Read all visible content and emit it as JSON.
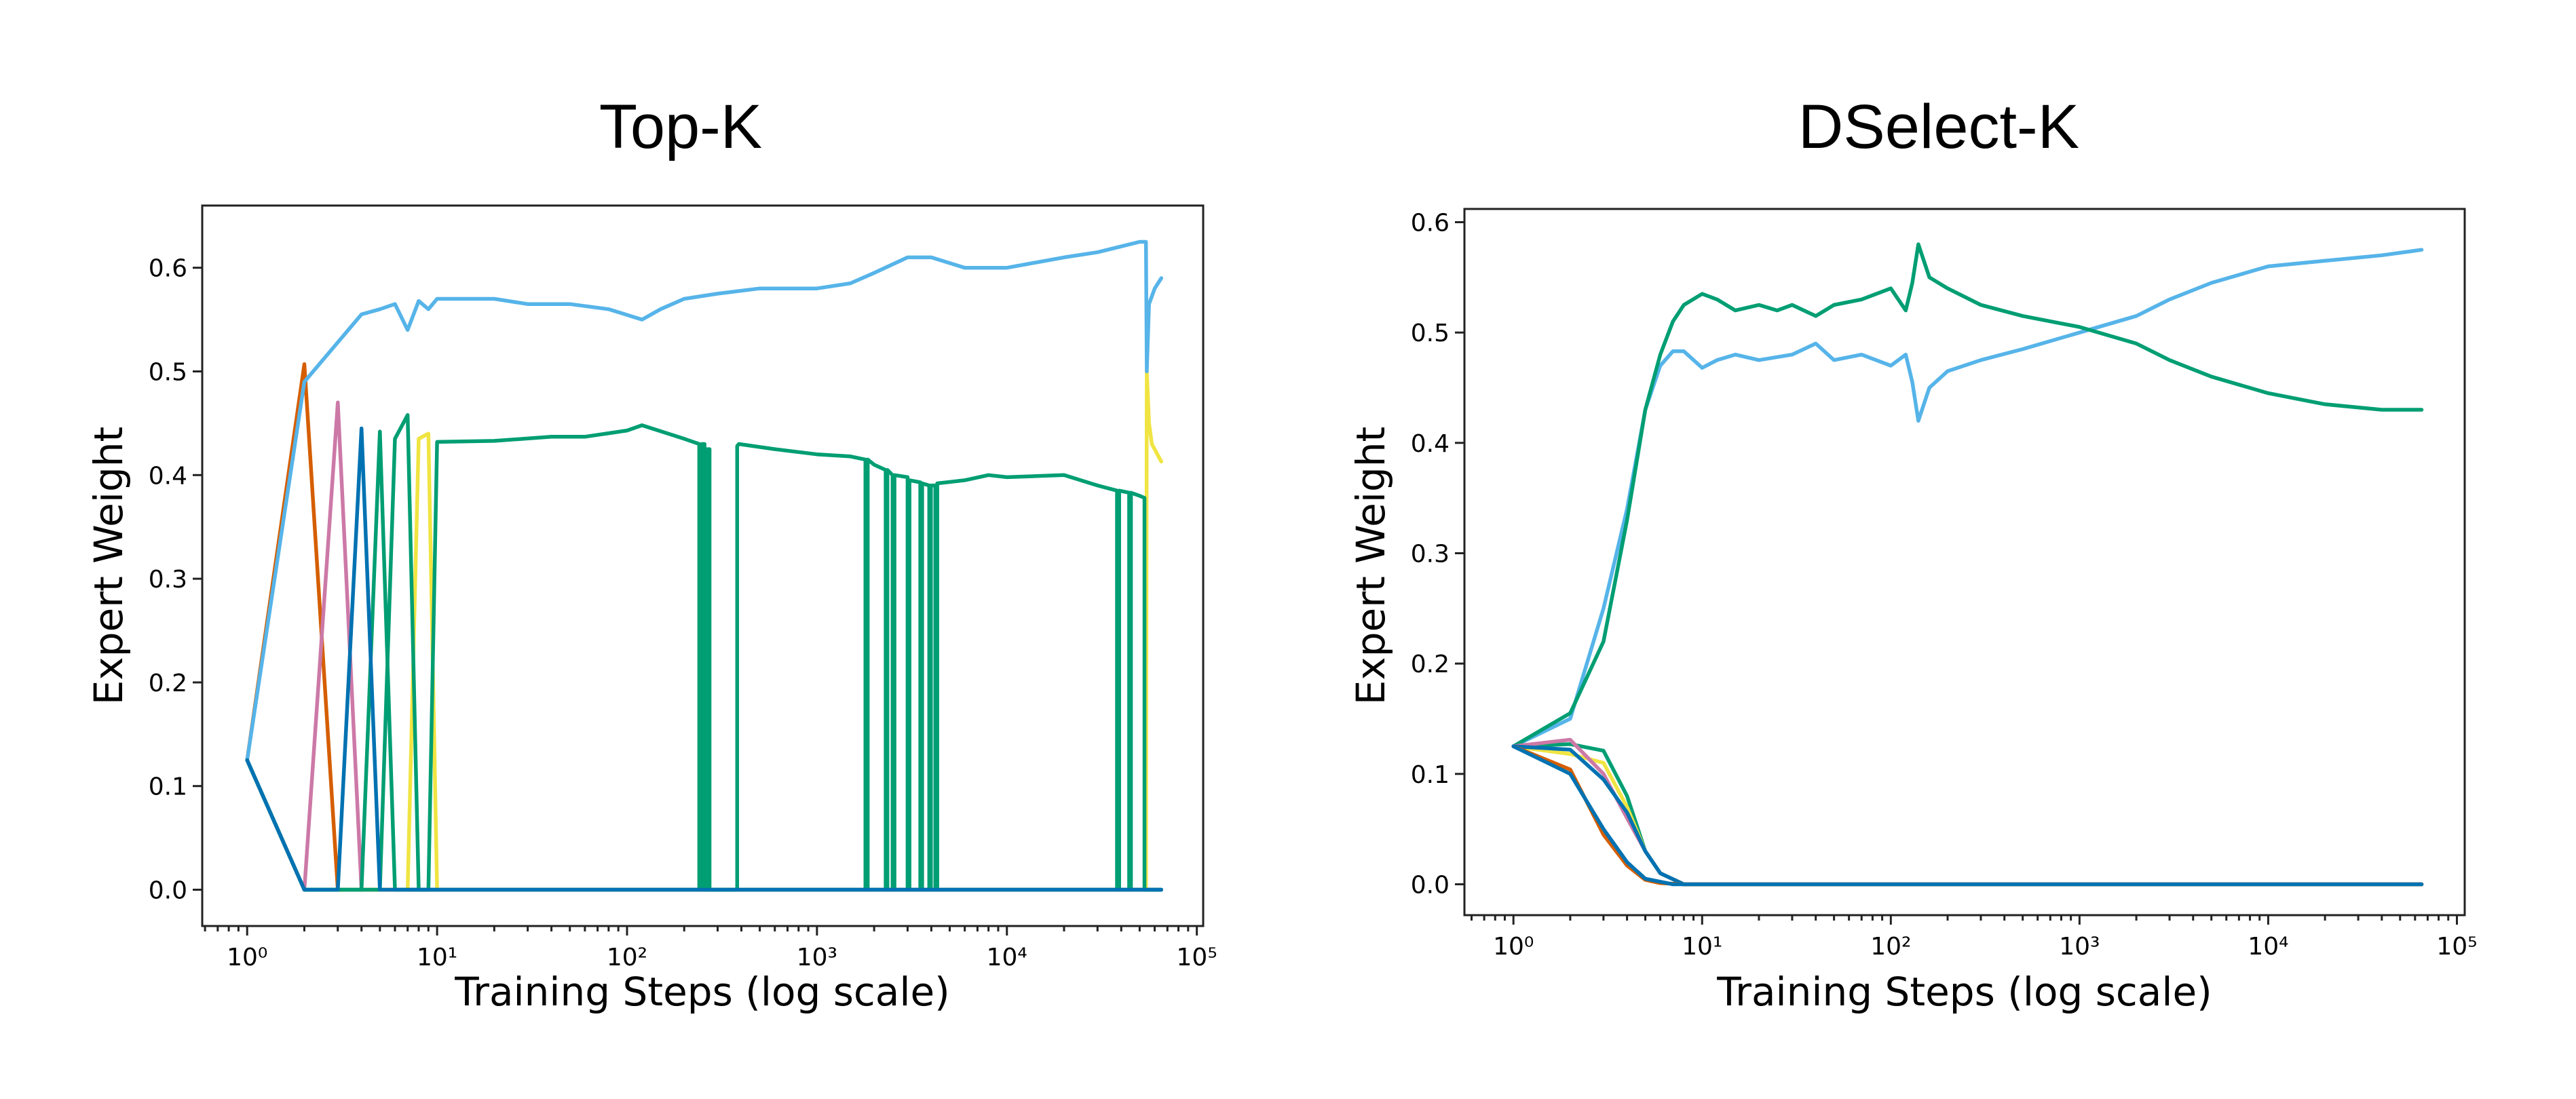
{
  "chart_data": [
    {
      "type": "line",
      "title": "Top-K",
      "xlabel": "Training Steps (log scale)",
      "ylabel": "Expert Weight",
      "xscale": "log",
      "xlim": [
        0.58,
        108000
      ],
      "ylim": [
        -0.035,
        0.66
      ],
      "xticks": [
        1,
        10,
        100,
        1000,
        10000,
        100000
      ],
      "xtick_labels": [
        "10⁰",
        "10¹",
        "10²",
        "10³",
        "10⁴",
        "10⁵"
      ],
      "yticks": [
        0.0,
        0.1,
        0.2,
        0.3,
        0.4,
        0.5,
        0.6
      ],
      "ytick_labels": [
        "0.0",
        "0.1",
        "0.2",
        "0.3",
        "0.4",
        "0.5",
        "0.6"
      ],
      "grid": false,
      "legend": "none",
      "series": [
        {
          "color": "#D55E00",
          "x": [
            1,
            2,
            3,
            65000
          ],
          "y": [
            0.125,
            0.507,
            0,
            0
          ]
        },
        {
          "color": "#CC79A7",
          "x": [
            1,
            2,
            3,
            4,
            65000
          ],
          "y": [
            0.125,
            0,
            0.47,
            0,
            0
          ]
        },
        {
          "color": "#F0E442",
          "x": [
            1,
            2,
            7,
            8,
            9,
            10,
            54000,
            54500,
            56000,
            58000,
            62000,
            65000
          ],
          "y": [
            0.125,
            0,
            0,
            0.435,
            0.44,
            0,
            0,
            0.5,
            0.45,
            0.43,
            0.42,
            0.413
          ]
        },
        {
          "color": "#56B4E9",
          "x": [
            1,
            2,
            4,
            5,
            6,
            7,
            8,
            9,
            10,
            20,
            30,
            50,
            80,
            120,
            150,
            200,
            300,
            500,
            1000,
            1500,
            2000,
            3000,
            4000,
            6000,
            10000,
            20000,
            30000,
            50000,
            54000,
            54500,
            56000,
            60000,
            65000
          ],
          "y": [
            0.125,
            0.49,
            0.555,
            0.56,
            0.565,
            0.54,
            0.568,
            0.56,
            0.57,
            0.57,
            0.565,
            0.565,
            0.56,
            0.55,
            0.56,
            0.57,
            0.575,
            0.58,
            0.58,
            0.585,
            0.595,
            0.61,
            0.61,
            0.6,
            0.6,
            0.61,
            0.615,
            0.625,
            0.625,
            0.5,
            0.565,
            0.58,
            0.59
          ]
        },
        {
          "color": "#009E73",
          "x": [
            1,
            2,
            4,
            5,
            6,
            65000
          ],
          "y": [
            0.125,
            0,
            0,
            0.442,
            0,
            0
          ]
        },
        {
          "color": "#009E73",
          "x": [
            1,
            2,
            5,
            6,
            7,
            8,
            9,
            10,
            20,
            40,
            60,
            100,
            120,
            200,
            240,
            240,
            248,
            248,
            256,
            256,
            264,
            264,
            272,
            272,
            380,
            380,
            388,
            388,
            600,
            1000,
            1500,
            1800,
            1800,
            1850,
            1850,
            2000,
            2300,
            2300,
            2350,
            2350,
            2500,
            2500,
            2560,
            2560,
            3000,
            3000,
            3070,
            3070,
            3500,
            3500,
            3580,
            3580,
            3900,
            3900,
            3980,
            3980,
            4200,
            4200,
            4300,
            4300,
            6000,
            8000,
            10000,
            20000,
            30000,
            38000,
            38000,
            39000,
            39000,
            44000,
            44000,
            45000,
            45000,
            50000,
            53000,
            53000,
            65000
          ],
          "y": [
            0.125,
            0,
            0,
            0.435,
            0.458,
            0,
            0,
            0.432,
            0.433,
            0.437,
            0.437,
            0.443,
            0.448,
            0.435,
            0.43,
            0,
            0,
            0.43,
            0.43,
            0,
            0,
            0.425,
            0.425,
            0,
            0,
            0.428,
            0.43,
            0.43,
            0.425,
            0.42,
            0.418,
            0.415,
            0,
            0,
            0.415,
            0.41,
            0.405,
            0,
            0,
            0.405,
            0.4,
            0,
            0,
            0.4,
            0.398,
            0,
            0,
            0.395,
            0.393,
            0,
            0,
            0.392,
            0.39,
            0,
            0,
            0.39,
            0.39,
            0,
            0,
            0.392,
            0.395,
            0.4,
            0.398,
            0.4,
            0.39,
            0.385,
            0,
            0,
            0.385,
            0.383,
            0,
            0,
            0.383,
            0.38,
            0.378,
            0,
            0
          ]
        },
        {
          "color": "#0072B2",
          "x": [
            1,
            2,
            3,
            4,
            5,
            65000
          ],
          "y": [
            0.125,
            0,
            0,
            0.445,
            0,
            0
          ]
        }
      ]
    },
    {
      "type": "line",
      "title": "DSelect-K",
      "xlabel": "Training Steps (log scale)",
      "ylabel": "Expert Weight",
      "xscale": "log",
      "xlim": [
        0.55,
        110000
      ],
      "ylim": [
        -0.028,
        0.612
      ],
      "xticks": [
        1,
        10,
        100,
        1000,
        10000,
        100000
      ],
      "xtick_labels": [
        "10⁰",
        "10¹",
        "10²",
        "10³",
        "10⁴",
        "10⁵"
      ],
      "yticks": [
        0.0,
        0.1,
        0.2,
        0.3,
        0.4,
        0.5,
        0.6
      ],
      "ytick_labels": [
        "0.0",
        "0.1",
        "0.2",
        "0.3",
        "0.4",
        "0.5",
        "0.6"
      ],
      "grid": false,
      "legend": "none",
      "series": [
        {
          "color": "#56B4E9",
          "x": [
            1,
            2,
            3,
            4,
            5,
            6,
            7,
            8,
            10,
            12,
            15,
            20,
            30,
            40,
            50,
            70,
            100,
            120,
            130,
            140,
            160,
            200,
            300,
            500,
            1000,
            2000,
            3000,
            5000,
            10000,
            20000,
            40000,
            65000
          ],
          "y": [
            0.125,
            0.15,
            0.25,
            0.34,
            0.43,
            0.47,
            0.483,
            0.483,
            0.468,
            0.475,
            0.48,
            0.475,
            0.48,
            0.49,
            0.475,
            0.48,
            0.47,
            0.48,
            0.455,
            0.42,
            0.45,
            0.465,
            0.475,
            0.485,
            0.5,
            0.515,
            0.53,
            0.545,
            0.56,
            0.565,
            0.57,
            0.575
          ]
        },
        {
          "color": "#009E73",
          "x": [
            1,
            2,
            3,
            4,
            5,
            6,
            7,
            8,
            10,
            12,
            15,
            20,
            25,
            30,
            40,
            50,
            70,
            100,
            120,
            130,
            140,
            160,
            200,
            300,
            500,
            1000,
            2000,
            3000,
            5000,
            10000,
            20000,
            40000,
            65000
          ],
          "y": [
            0.125,
            0.155,
            0.22,
            0.33,
            0.43,
            0.48,
            0.51,
            0.525,
            0.535,
            0.53,
            0.52,
            0.525,
            0.52,
            0.525,
            0.515,
            0.525,
            0.53,
            0.54,
            0.52,
            0.545,
            0.58,
            0.55,
            0.54,
            0.525,
            0.515,
            0.505,
            0.49,
            0.475,
            0.46,
            0.445,
            0.435,
            0.43,
            0.43
          ]
        },
        {
          "color": "#009E73",
          "x": [
            1,
            2,
            3,
            4,
            5,
            6,
            8,
            65000
          ],
          "y": [
            0.125,
            0.127,
            0.121,
            0.08,
            0.03,
            0.01,
            0,
            0
          ]
        },
        {
          "color": "#F0E442",
          "x": [
            1,
            2,
            3,
            4,
            5,
            6,
            8,
            65000
          ],
          "y": [
            0.125,
            0.118,
            0.11,
            0.07,
            0.03,
            0.01,
            0,
            0
          ]
        },
        {
          "color": "#CC79A7",
          "x": [
            1,
            2,
            3,
            4,
            5,
            6,
            8,
            65000
          ],
          "y": [
            0.125,
            0.131,
            0.1,
            0.06,
            0.03,
            0.01,
            0,
            0
          ]
        },
        {
          "color": "#0072B2",
          "x": [
            1,
            2,
            3,
            4,
            5,
            6,
            8,
            65000
          ],
          "y": [
            0.125,
            0.122,
            0.095,
            0.065,
            0.03,
            0.01,
            0,
            0
          ]
        },
        {
          "color": "#D55E00",
          "x": [
            1,
            2,
            3,
            4,
            5,
            6,
            8,
            65000
          ],
          "y": [
            0.125,
            0.104,
            0.045,
            0.017,
            0.004,
            0.001,
            0,
            0
          ]
        },
        {
          "color": "#0072B2",
          "x": [
            1,
            2,
            3,
            4,
            5,
            7,
            65000
          ],
          "y": [
            0.125,
            0.1,
            0.05,
            0.02,
            0.005,
            0,
            0
          ]
        }
      ]
    }
  ]
}
